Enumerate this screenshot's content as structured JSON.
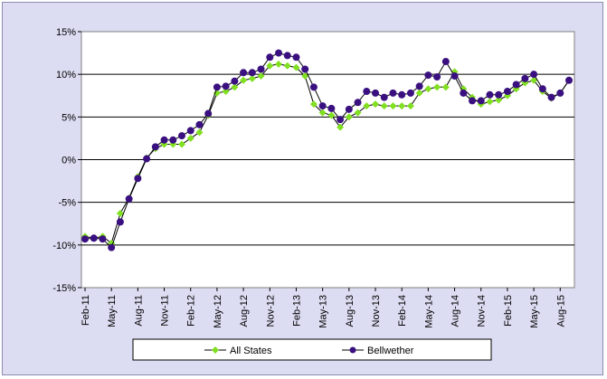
{
  "chart_data": {
    "type": "line",
    "title": "",
    "xlabel": "",
    "ylabel": "",
    "ylim": [
      -15,
      15
    ],
    "y_ticks": [
      "15%",
      "10%",
      "5%",
      "0%",
      "-5%",
      "-10%",
      "-15%"
    ],
    "x_tick_labels": [
      "Feb-11",
      "May-11",
      "Aug-11",
      "Nov-11",
      "Feb-12",
      "May-12",
      "Aug-12",
      "Nov-12",
      "Feb-13",
      "May-13",
      "Aug-13",
      "Nov-13",
      "Feb-14",
      "May-14",
      "Aug-14",
      "Nov-14",
      "Feb-15",
      "May-15",
      "Aug-15"
    ],
    "x": [
      "Feb-11",
      "Mar-11",
      "Apr-11",
      "May-11",
      "Jun-11",
      "Jul-11",
      "Aug-11",
      "Sep-11",
      "Oct-11",
      "Nov-11",
      "Dec-11",
      "Jan-12",
      "Feb-12",
      "Mar-12",
      "Apr-12",
      "May-12",
      "Jun-12",
      "Jul-12",
      "Aug-12",
      "Sep-12",
      "Oct-12",
      "Nov-12",
      "Dec-12",
      "Jan-13",
      "Feb-13",
      "Mar-13",
      "Apr-13",
      "May-13",
      "Jun-13",
      "Jul-13",
      "Aug-13",
      "Sep-13",
      "Oct-13",
      "Nov-13",
      "Dec-13",
      "Jan-14",
      "Feb-14",
      "Mar-14",
      "Apr-14",
      "May-14",
      "Jun-14",
      "Jul-14",
      "Aug-14",
      "Sep-14",
      "Oct-14",
      "Nov-14",
      "Dec-14",
      "Jan-15",
      "Feb-15",
      "Mar-15",
      "Apr-15",
      "May-15",
      "Jun-15",
      "Jul-15",
      "Aug-15",
      "Sep-15"
    ],
    "gridlines": true,
    "legend_position": "bottom",
    "series": [
      {
        "name": "All States",
        "color": "#80e020",
        "marker": "diamond",
        "values": [
          -9.0,
          -9.2,
          -9.0,
          -9.8,
          -6.3,
          -4.5,
          -2.0,
          0.2,
          1.3,
          1.8,
          1.8,
          1.8,
          2.5,
          3.2,
          5.2,
          7.8,
          8.0,
          8.5,
          9.3,
          9.5,
          9.8,
          11.0,
          11.2,
          11.0,
          10.8,
          9.8,
          6.5,
          5.5,
          5.2,
          3.8,
          5.0,
          5.5,
          6.3,
          6.5,
          6.3,
          6.3,
          6.3,
          6.3,
          7.8,
          8.3,
          8.5,
          8.5,
          10.3,
          8.3,
          7.3,
          6.5,
          6.8,
          7.0,
          7.5,
          8.3,
          9.0,
          9.3,
          8.0,
          7.2,
          7.8,
          9.3
        ]
      },
      {
        "name": "Bellwether",
        "color": "#3a1080",
        "marker": "circle",
        "values": [
          -9.3,
          -9.2,
          -9.3,
          -10.3,
          -7.3,
          -4.6,
          -2.2,
          0.1,
          1.5,
          2.3,
          2.3,
          2.8,
          3.4,
          4.1,
          5.4,
          8.5,
          8.6,
          9.2,
          10.2,
          10.2,
          10.6,
          12.0,
          12.5,
          12.2,
          12.0,
          10.6,
          8.5,
          6.3,
          6.0,
          4.7,
          5.9,
          6.7,
          8.0,
          7.8,
          7.3,
          7.8,
          7.6,
          7.8,
          8.6,
          9.9,
          9.7,
          11.5,
          9.8,
          7.8,
          6.9,
          6.9,
          7.6,
          7.6,
          8.0,
          8.8,
          9.5,
          10.0,
          8.3,
          7.3,
          7.8,
          9.3
        ]
      }
    ]
  }
}
